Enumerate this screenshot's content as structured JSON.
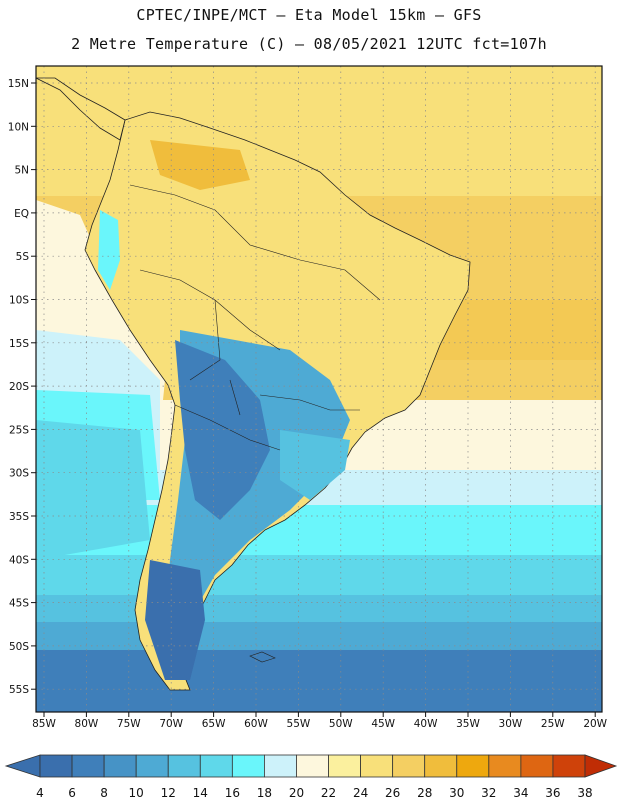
{
  "header": {
    "line1": "CPTEC/INPE/MCT –  Eta Model 15km – GFS",
    "line2": "2 Metre Temperature (C) – 08/05/2021 12UTC fct=107h"
  },
  "map": {
    "lat_labels": [
      "15N",
      "10N",
      "5N",
      "EQ",
      "5S",
      "10S",
      "15S",
      "20S",
      "25S",
      "30S",
      "35S",
      "40S",
      "45S",
      "50S",
      "55S"
    ],
    "lon_labels": [
      "85W",
      "80W",
      "75W",
      "70W",
      "65W",
      "60W",
      "55W",
      "50W",
      "45W",
      "40W",
      "35W",
      "30W",
      "25W",
      "20W"
    ]
  },
  "colorbar": {
    "ticks": [
      "4",
      "6",
      "8",
      "10",
      "12",
      "14",
      "16",
      "18",
      "20",
      "22",
      "24",
      "26",
      "28",
      "30",
      "32",
      "34",
      "36",
      "38"
    ],
    "colors": [
      "#3a6fad",
      "#3f7fba",
      "#4693c6",
      "#4eaad4",
      "#56c2e0",
      "#5fd8ea",
      "#6af6fb",
      "#cdf2fa",
      "#fdf7dd",
      "#fbf09e",
      "#f8e07a",
      "#f4cf62",
      "#f0bd3c",
      "#eea80e",
      "#e88a1f",
      "#de6612",
      "#cf420a",
      "#c02d05"
    ]
  }
}
